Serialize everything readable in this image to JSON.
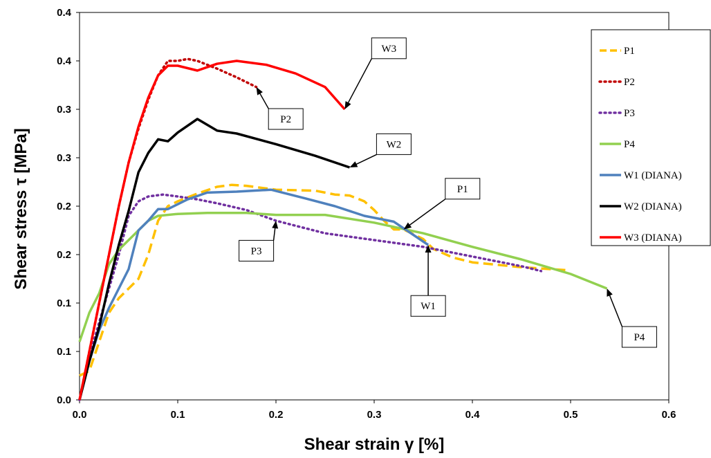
{
  "chart_data": {
    "type": "line",
    "title": "",
    "xlabel": "Shear strain γ [%]",
    "ylabel": "Shear stress τ  [MPa]",
    "xlim": [
      0,
      0.6
    ],
    "ylim": [
      0,
      0.4
    ],
    "x_ticks": [
      "0.0",
      "0.1",
      "0.2",
      "0.3",
      "0.4",
      "0.5",
      "0.6"
    ],
    "y_ticks": [
      "0.0",
      "0.1",
      "0.1",
      "0.2",
      "0.2",
      "0.3",
      "0.3",
      "0.4",
      "0.4"
    ],
    "grid": false,
    "legend_position": "right",
    "series": [
      {
        "name": "P1",
        "color": "#FFC000",
        "style": "dashed",
        "points": [
          [
            0,
            0.025
          ],
          [
            0.01,
            0.03
          ],
          [
            0.02,
            0.06
          ],
          [
            0.03,
            0.09
          ],
          [
            0.04,
            0.105
          ],
          [
            0.05,
            0.115
          ],
          [
            0.06,
            0.125
          ],
          [
            0.07,
            0.15
          ],
          [
            0.08,
            0.185
          ],
          [
            0.09,
            0.2
          ],
          [
            0.1,
            0.205
          ],
          [
            0.12,
            0.213
          ],
          [
            0.14,
            0.22
          ],
          [
            0.155,
            0.222
          ],
          [
            0.17,
            0.221
          ],
          [
            0.2,
            0.217
          ],
          [
            0.24,
            0.216
          ],
          [
            0.26,
            0.212
          ],
          [
            0.275,
            0.211
          ],
          [
            0.29,
            0.205
          ],
          [
            0.3,
            0.196
          ],
          [
            0.31,
            0.185
          ],
          [
            0.32,
            0.176
          ],
          [
            0.33,
            0.176
          ],
          [
            0.34,
            0.171
          ],
          [
            0.35,
            0.166
          ],
          [
            0.36,
            0.156
          ],
          [
            0.38,
            0.147
          ],
          [
            0.4,
            0.142
          ],
          [
            0.45,
            0.137
          ],
          [
            0.495,
            0.134
          ]
        ]
      },
      {
        "name": "P2",
        "color": "#C00000",
        "style": "dotted",
        "points": [
          [
            0,
            0
          ],
          [
            0.01,
            0.05
          ],
          [
            0.02,
            0.1
          ],
          [
            0.03,
            0.15
          ],
          [
            0.04,
            0.2
          ],
          [
            0.05,
            0.245
          ],
          [
            0.06,
            0.28
          ],
          [
            0.07,
            0.31
          ],
          [
            0.08,
            0.335
          ],
          [
            0.09,
            0.35
          ],
          [
            0.1,
            0.35
          ],
          [
            0.11,
            0.352
          ],
          [
            0.12,
            0.35
          ],
          [
            0.14,
            0.342
          ],
          [
            0.16,
            0.333
          ],
          [
            0.18,
            0.323
          ]
        ]
      },
      {
        "name": "P3",
        "color": "#7030A0",
        "style": "dotted",
        "points": [
          [
            0,
            0
          ],
          [
            0.01,
            0.045
          ],
          [
            0.02,
            0.08
          ],
          [
            0.03,
            0.115
          ],
          [
            0.04,
            0.15
          ],
          [
            0.05,
            0.19
          ],
          [
            0.06,
            0.205
          ],
          [
            0.07,
            0.21
          ],
          [
            0.085,
            0.212
          ],
          [
            0.1,
            0.21
          ],
          [
            0.12,
            0.207
          ],
          [
            0.14,
            0.203
          ],
          [
            0.17,
            0.196
          ],
          [
            0.2,
            0.185
          ],
          [
            0.25,
            0.172
          ],
          [
            0.3,
            0.165
          ],
          [
            0.35,
            0.158
          ],
          [
            0.4,
            0.148
          ],
          [
            0.45,
            0.138
          ],
          [
            0.47,
            0.133
          ]
        ]
      },
      {
        "name": "P4",
        "color": "#92D050",
        "style": "solid",
        "points": [
          [
            0,
            0.06
          ],
          [
            0.01,
            0.09
          ],
          [
            0.02,
            0.11
          ],
          [
            0.03,
            0.14
          ],
          [
            0.04,
            0.155
          ],
          [
            0.05,
            0.165
          ],
          [
            0.06,
            0.175
          ],
          [
            0.07,
            0.185
          ],
          [
            0.08,
            0.19
          ],
          [
            0.1,
            0.192
          ],
          [
            0.13,
            0.193
          ],
          [
            0.17,
            0.193
          ],
          [
            0.2,
            0.191
          ],
          [
            0.25,
            0.191
          ],
          [
            0.3,
            0.183
          ],
          [
            0.35,
            0.172
          ],
          [
            0.4,
            0.158
          ],
          [
            0.45,
            0.145
          ],
          [
            0.5,
            0.13
          ],
          [
            0.537,
            0.115
          ]
        ]
      },
      {
        "name": "W1 (DIANA)",
        "color": "#4F81BD",
        "style": "solid",
        "points": [
          [
            0,
            0
          ],
          [
            0.01,
            0.04
          ],
          [
            0.02,
            0.072
          ],
          [
            0.03,
            0.095
          ],
          [
            0.04,
            0.115
          ],
          [
            0.05,
            0.135
          ],
          [
            0.06,
            0.175
          ],
          [
            0.07,
            0.185
          ],
          [
            0.08,
            0.197
          ],
          [
            0.09,
            0.197
          ],
          [
            0.11,
            0.207
          ],
          [
            0.13,
            0.214
          ],
          [
            0.16,
            0.215
          ],
          [
            0.195,
            0.217
          ],
          [
            0.23,
            0.208
          ],
          [
            0.26,
            0.2
          ],
          [
            0.29,
            0.19
          ],
          [
            0.32,
            0.184
          ],
          [
            0.355,
            0.16
          ]
        ]
      },
      {
        "name": "W2 (DIANA)",
        "color": "#000000",
        "style": "solid",
        "points": [
          [
            0,
            0
          ],
          [
            0.01,
            0.04
          ],
          [
            0.02,
            0.075
          ],
          [
            0.03,
            0.12
          ],
          [
            0.04,
            0.16
          ],
          [
            0.05,
            0.195
          ],
          [
            0.06,
            0.235
          ],
          [
            0.07,
            0.255
          ],
          [
            0.08,
            0.269
          ],
          [
            0.09,
            0.267
          ],
          [
            0.1,
            0.276
          ],
          [
            0.12,
            0.29
          ],
          [
            0.14,
            0.278
          ],
          [
            0.16,
            0.275
          ],
          [
            0.2,
            0.264
          ],
          [
            0.24,
            0.252
          ],
          [
            0.275,
            0.24
          ]
        ]
      },
      {
        "name": "W3 (DIANA)",
        "color": "#FF0000",
        "style": "solid",
        "points": [
          [
            0,
            0
          ],
          [
            0.01,
            0.05
          ],
          [
            0.02,
            0.1
          ],
          [
            0.03,
            0.15
          ],
          [
            0.04,
            0.2
          ],
          [
            0.05,
            0.245
          ],
          [
            0.06,
            0.282
          ],
          [
            0.07,
            0.312
          ],
          [
            0.08,
            0.335
          ],
          [
            0.09,
            0.345
          ],
          [
            0.1,
            0.345
          ],
          [
            0.12,
            0.34
          ],
          [
            0.14,
            0.347
          ],
          [
            0.16,
            0.35
          ],
          [
            0.19,
            0.346
          ],
          [
            0.22,
            0.337
          ],
          [
            0.25,
            0.323
          ],
          [
            0.27,
            0.3
          ]
        ]
      }
    ],
    "annotations": [
      {
        "label": "W3",
        "target": [
          0.27,
          0.3
        ],
        "box": [
          0.315,
          0.363
        ]
      },
      {
        "label": "P2",
        "target": [
          0.18,
          0.323
        ],
        "box": [
          0.21,
          0.29
        ]
      },
      {
        "label": "W2",
        "target": [
          0.275,
          0.24
        ],
        "box": [
          0.32,
          0.264
        ]
      },
      {
        "label": "P1",
        "target": [
          0.33,
          0.176
        ],
        "box": [
          0.39,
          0.218
        ]
      },
      {
        "label": "P3",
        "target": [
          0.2,
          0.185
        ],
        "box": [
          0.18,
          0.154
        ]
      },
      {
        "label": "W1",
        "target": [
          0.355,
          0.16
        ],
        "box": [
          0.355,
          0.097
        ]
      },
      {
        "label": "P4",
        "target": [
          0.537,
          0.115
        ],
        "box": [
          0.57,
          0.065
        ]
      }
    ]
  }
}
